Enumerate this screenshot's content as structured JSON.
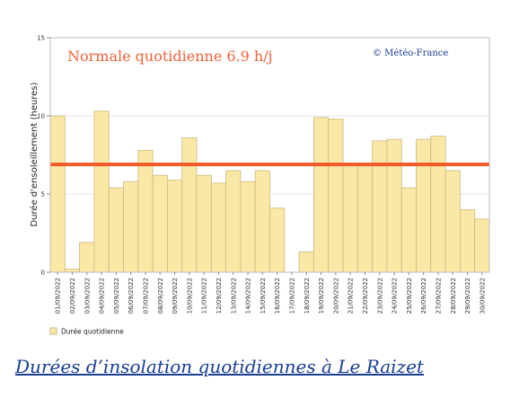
{
  "caption": "Durées d’insolation quotidiennes à Le Raizet",
  "colors": {
    "bar_fill": "#fbe8a6",
    "bar_stroke": "#c9b882",
    "normal_line": "#f55a2b",
    "normal_text": "#f0623a",
    "copyright_text": "#1b3f8c",
    "caption_text": "#1a3d8f"
  },
  "chart_data": {
    "type": "bar",
    "ylabel": "Durée d'ensoleillement (heures)",
    "ylim": [
      0,
      15
    ],
    "yticks": [
      "0",
      "5",
      "10",
      "15"
    ],
    "grid": true,
    "legend": {
      "position": "bottom-left",
      "entries": [
        "Durée quotidienne"
      ]
    },
    "annotations": {
      "normal_text": "Normale quotidienne  6.9 h/j",
      "copyright": "© Météo-France"
    },
    "normal_value": 6.9,
    "categories": [
      "01/09/2022",
      "02/09/2022",
      "03/09/2022",
      "04/09/2022",
      "05/09/2022",
      "06/09/2022",
      "07/09/2022",
      "08/09/2022",
      "09/09/2022",
      "10/09/2022",
      "11/09/2022",
      "12/09/2022",
      "13/09/2022",
      "14/09/2022",
      "15/09/2022",
      "16/09/2022",
      "17/09/2022",
      "18/09/2022",
      "19/09/2022",
      "20/09/2022",
      "21/09/2022",
      "22/09/2022",
      "23/09/2022",
      "24/09/2022",
      "25/09/2022",
      "26/09/2022",
      "27/09/2022",
      "28/09/2022",
      "29/09/2022",
      "30/09/2022"
    ],
    "series": [
      {
        "name": "Durée quotidienne",
        "values": [
          10.0,
          0.2,
          1.9,
          10.3,
          5.4,
          5.8,
          7.8,
          6.2,
          5.9,
          8.6,
          6.2,
          5.7,
          6.5,
          5.8,
          6.5,
          4.1,
          0,
          1.3,
          9.9,
          9.8,
          6.9,
          6.9,
          8.4,
          8.5,
          5.4,
          8.5,
          8.7,
          6.5,
          4.0,
          3.4
        ]
      }
    ]
  }
}
